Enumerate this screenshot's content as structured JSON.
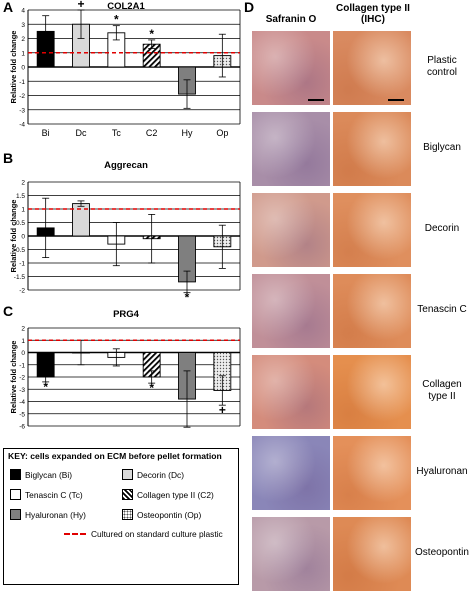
{
  "panels": {
    "A": {
      "letter": "A",
      "title": "COL2A1"
    },
    "B": {
      "letter": "B",
      "title": "Aggrecan"
    },
    "C": {
      "letter": "C",
      "title": "PRG4"
    },
    "D": {
      "letter": "D"
    }
  },
  "chart_data": [
    {
      "type": "bar",
      "panel": "A",
      "title": "COL2A1",
      "ylabel": "Relative fold change",
      "categories": [
        "Bi",
        "Dc",
        "Tc",
        "C2",
        "Hy",
        "Op"
      ],
      "values": [
        2.5,
        3.0,
        2.4,
        1.6,
        -1.9,
        0.8
      ],
      "errors": [
        1.1,
        1.0,
        0.5,
        0.3,
        1.0,
        1.5
      ],
      "ylim": [
        -4,
        4
      ],
      "yticks": [
        "4",
        "3",
        "2",
        "1",
        "0",
        "-1",
        "-2",
        "-3",
        "-4"
      ],
      "reference_line": 1,
      "annotations": [
        "",
        "+",
        "*",
        "*",
        "",
        ""
      ],
      "show_category_labels": true
    },
    {
      "type": "bar",
      "panel": "B",
      "title": "Aggrecan",
      "ylabel": "Relative fold change",
      "categories": [
        "Bi",
        "Dc",
        "Tc",
        "C2",
        "Hy",
        "Op"
      ],
      "values": [
        0.3,
        1.2,
        -0.3,
        -0.1,
        -1.7,
        -0.4
      ],
      "errors": [
        1.1,
        0.1,
        0.8,
        0.9,
        0.4,
        0.8
      ],
      "ylim": [
        -2,
        2
      ],
      "yticks": [
        "2",
        "1.5",
        "1",
        "0.5",
        "0",
        "-0.5",
        "-1",
        "-1.5",
        "-2"
      ],
      "reference_line": 1,
      "annotations": [
        "",
        "",
        "",
        "",
        "*",
        ""
      ],
      "show_category_labels": false
    },
    {
      "type": "bar",
      "panel": "C",
      "title": "PRG4",
      "ylabel": "Relative fold change",
      "categories": [
        "Bi",
        "Dc",
        "Tc",
        "C2",
        "Hy",
        "Op"
      ],
      "values": [
        -2.0,
        0.0,
        -0.4,
        -2.0,
        -3.8,
        -3.1
      ],
      "errors": [
        0.4,
        1.0,
        0.7,
        0.5,
        2.3,
        1.2
      ],
      "ylim": [
        -6,
        2
      ],
      "yticks": [
        "2",
        "1",
        "0",
        "-1",
        "-2",
        "-3",
        "-4",
        "-5",
        "-6"
      ],
      "reference_line": 1,
      "annotations": [
        "*",
        "",
        "",
        "*",
        "",
        "+"
      ],
      "show_category_labels": false
    }
  ],
  "key": {
    "title": "KEY: cells expanded on ECM before pellet formation",
    "items": [
      {
        "label": "Biglycan (Bi)",
        "fill": "#000000",
        "pattern": "solid"
      },
      {
        "label": "Decorin (Dc)",
        "fill": "#d9d9d9",
        "pattern": "solid"
      },
      {
        "label": "Tenascin C (Tc)",
        "fill": "#ffffff",
        "pattern": "solid"
      },
      {
        "label": "Collagen type II (C2)",
        "fill": "#ffffff",
        "pattern": "diagonal"
      },
      {
        "label": "Hyaluronan (Hy)",
        "fill": "#7f7f7f",
        "pattern": "solid"
      },
      {
        "label": "Osteopontin (Op)",
        "fill": "#ffffff",
        "pattern": "dots"
      }
    ],
    "reference_label": "Cultured on standard culture plastic",
    "reference_color": "#e00000"
  },
  "histology": {
    "columns": [
      "Safranin O",
      "Collagen type II (IHC)"
    ],
    "rows": [
      {
        "label": "Plastic control",
        "saf": "#c98a8a",
        "ihc": "#d98a60"
      },
      {
        "label": "Biglycan",
        "saf": "#a88ea8",
        "ihc": "#db8a5a"
      },
      {
        "label": "Decorin",
        "saf": "#d09a8c",
        "ihc": "#df8f5e"
      },
      {
        "label": "Tenascin C",
        "saf": "#c08f98",
        "ihc": "#de8c5a"
      },
      {
        "label": "Collagen type II",
        "saf": "#d48c7c",
        "ihc": "#e58f4e"
      },
      {
        "label": "Hyaluronan",
        "saf": "#8a86b8",
        "ihc": "#e4905a"
      },
      {
        "label": "Osteopontin",
        "saf": "#b89aa8",
        "ihc": "#de8a55"
      }
    ]
  },
  "colors": {
    "bar_black": "#000000",
    "bar_light": "#d9d9d9",
    "bar_white": "#ffffff",
    "bar_dark": "#7f7f7f",
    "reference": "#e00000"
  }
}
